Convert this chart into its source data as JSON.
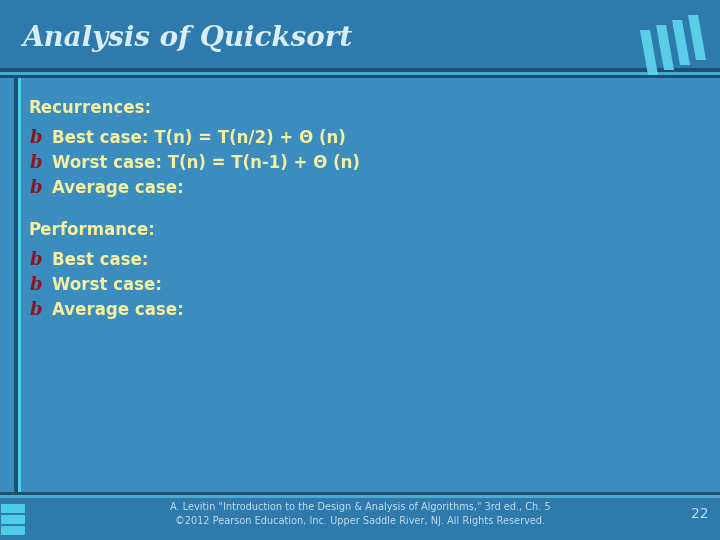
{
  "title": "Analysis of Quicksort",
  "bg_color": "#3B8DC0",
  "title_bg_color": "#2E7AAD",
  "separator_dark": "#1A5070",
  "separator_light": "#4AAAD0",
  "left_bar_dark": "#1A5070",
  "left_bar_light": "#4ECDE8",
  "title_color": "#D8EEF8",
  "section_color": "#F5F0A0",
  "bullet_color": "#8B1520",
  "text_color": "#F5F0A0",
  "footer_color": "#C0DDF0",
  "recurrences_label": "Recurrences:",
  "recurrences_items": [
    "Best case: T(n) = T(n/2) + Θ (n)",
    "Worst case: T(n) = T(n-1) + Θ (n)",
    "Average case:"
  ],
  "performance_label": "Performance:",
  "performance_items": [
    "Best case:",
    "Worst case:",
    "Average case:"
  ],
  "footer_text": "A. Levitin \"Introduction to the Design & Analysis of Algorithms,\" 3rd ed., Ch. 5\n©2012 Pearson Education, Inc. Upper Saddle River, NJ. All Rights Reserved.",
  "page_number": "22",
  "accent_color": "#60D8F0",
  "accent_color2": "#3AAACE"
}
